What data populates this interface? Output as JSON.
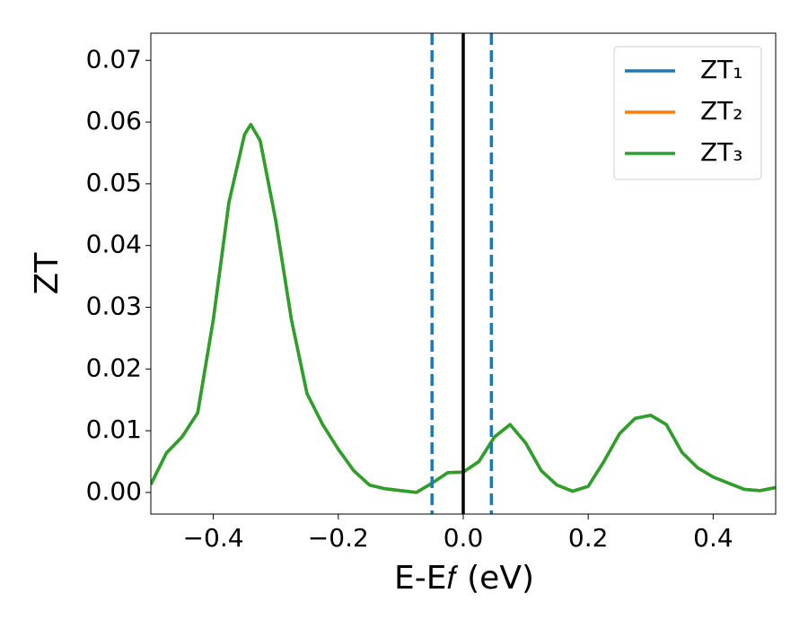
{
  "chart_data": {
    "type": "line",
    "xlabel": "E-E𝑓 (eV)",
    "ylabel": "ZT",
    "x": [
      -0.5,
      -0.475,
      -0.45,
      -0.425,
      -0.4,
      -0.375,
      -0.35,
      -0.34,
      -0.325,
      -0.3,
      -0.275,
      -0.25,
      -0.225,
      -0.2,
      -0.175,
      -0.15,
      -0.125,
      -0.1,
      -0.075,
      -0.05,
      -0.025,
      0,
      0.025,
      0.05,
      0.075,
      0.1,
      0.125,
      0.15,
      0.175,
      0.2,
      0.225,
      0.25,
      0.275,
      0.3,
      0.325,
      0.35,
      0.375,
      0.4,
      0.425,
      0.45,
      0.475,
      0.5
    ],
    "series": [
      {
        "name": "ZT₁",
        "color": "#1f77b4",
        "values": [
          0.0013,
          0.0064,
          0.009,
          0.0129,
          0.028,
          0.047,
          0.058,
          0.0596,
          0.057,
          0.044,
          0.028,
          0.016,
          0.011,
          0.007,
          0.0035,
          0.0012,
          0.0006,
          0.0003,
          0.0,
          0.0015,
          0.0032,
          0.0033,
          0.005,
          0.009,
          0.011,
          0.008,
          0.0035,
          0.0012,
          0.0002,
          0.001,
          0.005,
          0.0095,
          0.012,
          0.0125,
          0.011,
          0.0065,
          0.004,
          0.0025,
          0.0015,
          0.0005,
          0.0003,
          0.0008
        ]
      },
      {
        "name": "ZT₂",
        "color": "#ff7f0e",
        "values": [
          0.0013,
          0.0064,
          0.009,
          0.0129,
          0.028,
          0.047,
          0.058,
          0.0596,
          0.057,
          0.044,
          0.028,
          0.016,
          0.011,
          0.007,
          0.0035,
          0.0012,
          0.0006,
          0.0003,
          0.0,
          0.0015,
          0.0032,
          0.0033,
          0.005,
          0.009,
          0.011,
          0.008,
          0.0035,
          0.0012,
          0.0002,
          0.001,
          0.005,
          0.0095,
          0.012,
          0.0125,
          0.011,
          0.0065,
          0.004,
          0.0025,
          0.0015,
          0.0005,
          0.0003,
          0.0008
        ]
      },
      {
        "name": "ZT₃",
        "color": "#2ca02c",
        "values": [
          0.0013,
          0.0064,
          0.009,
          0.0129,
          0.028,
          0.047,
          0.058,
          0.0596,
          0.057,
          0.044,
          0.028,
          0.016,
          0.011,
          0.007,
          0.0035,
          0.0012,
          0.0006,
          0.0003,
          0.0,
          0.0015,
          0.0032,
          0.0033,
          0.005,
          0.009,
          0.011,
          0.008,
          0.0035,
          0.0012,
          0.0002,
          0.001,
          0.005,
          0.0095,
          0.012,
          0.0125,
          0.011,
          0.0065,
          0.004,
          0.0025,
          0.0015,
          0.0005,
          0.0003,
          0.0008
        ]
      }
    ],
    "vlines": [
      {
        "x": -0.05,
        "color": "#1f77b4",
        "style": "dashed"
      },
      {
        "x": 0,
        "color": "#000000",
        "style": "solid"
      },
      {
        "x": 0.045,
        "color": "#1f77b4",
        "style": "dashed"
      }
    ],
    "xlim": [
      -0.5,
      0.5
    ],
    "xticks": [
      {
        "value": -0.4,
        "label": "−0.4"
      },
      {
        "value": -0.2,
        "label": "−0.2"
      },
      {
        "value": 0,
        "label": "0.0"
      },
      0.2,
      0.4
    ],
    "ylim": [
      -0.0035,
      0.0744
    ],
    "yticks": [
      {
        "value": 0,
        "label": "0.00"
      },
      {
        "value": 0.01,
        "label": "0.01"
      },
      {
        "value": 0.02,
        "label": "0.02"
      },
      {
        "value": 0.03,
        "label": "0.03"
      },
      {
        "value": 0.04,
        "label": "0.04"
      },
      {
        "value": 0.05,
        "label": "0.05"
      },
      {
        "value": 0.06,
        "label": "0.06"
      },
      {
        "value": 0.07,
        "label": "0.07"
      }
    ],
    "legend": "upper right"
  }
}
